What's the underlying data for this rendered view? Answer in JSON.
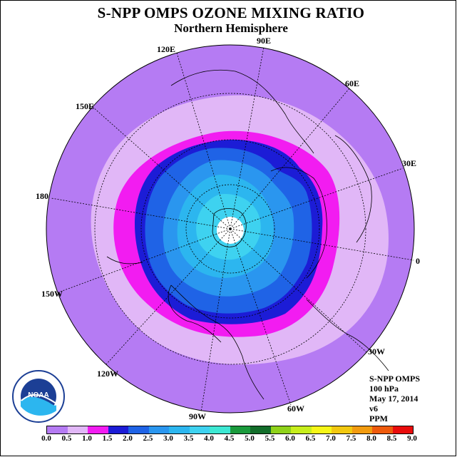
{
  "title": "S-NPP OMPS OZONE MIXING RATIO",
  "subtitle": "Northern Hemisphere",
  "longitudes": [
    "90E",
    "60E",
    "30E",
    "0",
    "30W",
    "60W",
    "90W",
    "120W",
    "150W",
    "180",
    "150E",
    "120E"
  ],
  "info": {
    "instrument": "S-NPP OMPS",
    "level": "100 hPa",
    "date": "May 17, 2014",
    "version": "v6",
    "units": "PPM"
  },
  "colorbar": {
    "ticks": [
      "0.0",
      "0.5",
      "1.0",
      "1.5",
      "2.0",
      "2.5",
      "3.0",
      "3.5",
      "4.0",
      "4.5",
      "5.0",
      "5.5",
      "6.0",
      "6.5",
      "7.0",
      "7.5",
      "8.0",
      "8.5",
      "9.0"
    ],
    "colors": [
      "#b57bf3",
      "#e1b7f7",
      "#f21cf1",
      "#1c1cd6",
      "#1f63e6",
      "#2a96ef",
      "#2cb6ef",
      "#3ed2f0",
      "#3de8d3",
      "#1a9a3c",
      "#126d2a",
      "#8fd21a",
      "#c7ee1c",
      "#f6f617",
      "#f2c80f",
      "#f29b0f",
      "#ee5a0c",
      "#e90c0c",
      "#8c5a3c"
    ]
  },
  "logo_text": "NOAA"
}
